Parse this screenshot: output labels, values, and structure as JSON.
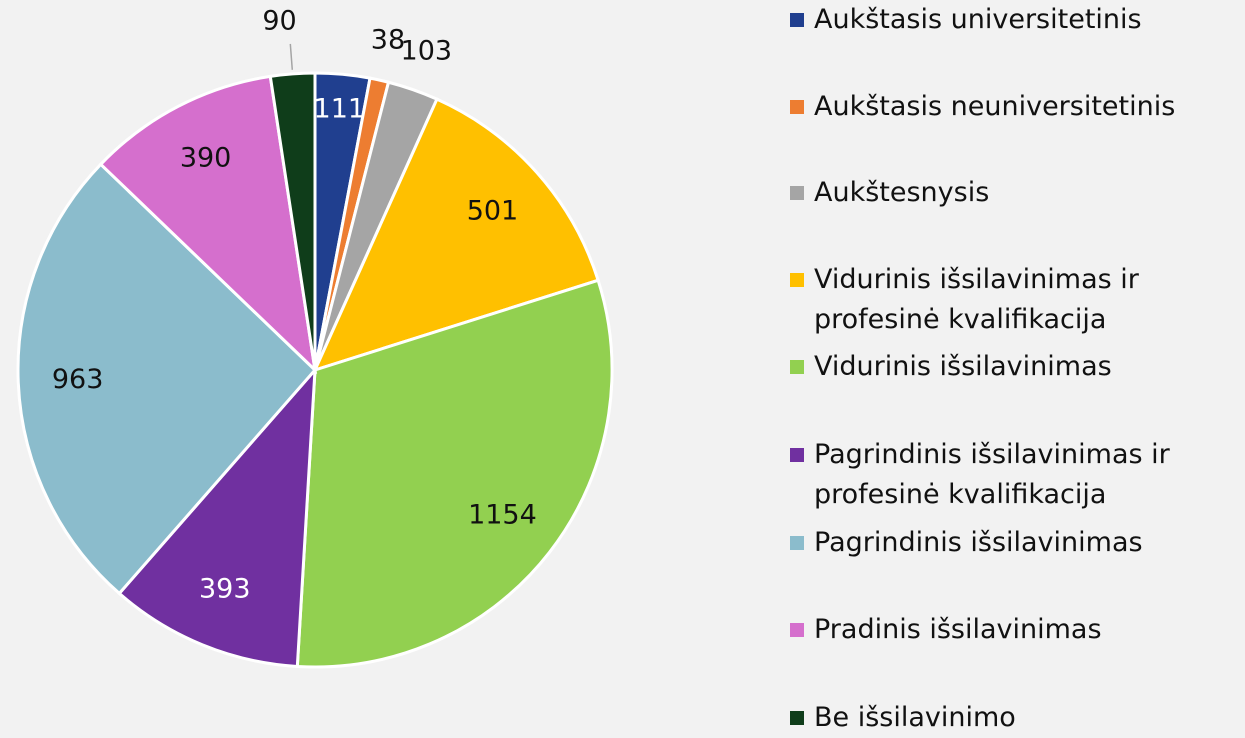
{
  "chart_data": {
    "type": "pie",
    "categories": [
      "Aukštasis universitetinis",
      "Aukštasis neuniversitetinis",
      "Aukštesnysis",
      "Vidurinis išsilavinimas ir profesinė kvalifikacija",
      "Vidurinis išsilavinimas",
      "Pagrindinis išsilavinimas ir profesinė kvalifikacija",
      "Pagrindinis išsilavinimas",
      "Pradinis išsilavinimas",
      "Be išsilavinimo"
    ],
    "values": [
      111,
      38,
      103,
      501,
      1154,
      393,
      963,
      390,
      90
    ],
    "colors": [
      "#203f8f",
      "#ed7d31",
      "#a5a5a5",
      "#ffc000",
      "#92d050",
      "#7030a0",
      "#8bbccc",
      "#d56fcd",
      "#0f3d1a"
    ],
    "legend": "right"
  }
}
